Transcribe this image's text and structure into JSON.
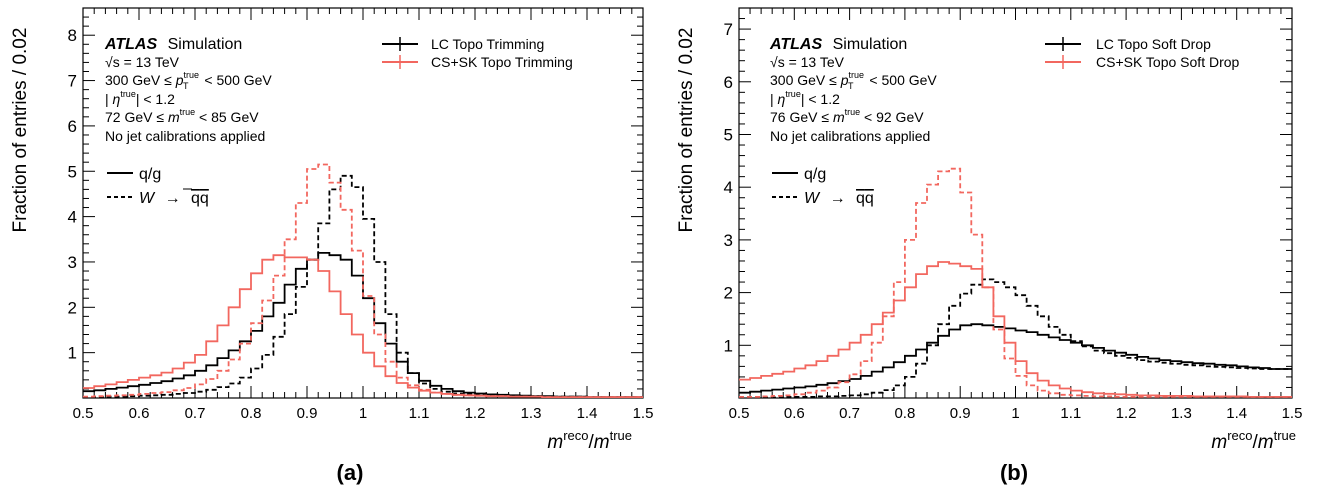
{
  "figure": {
    "ylabel": "Fraction of entries / 0.02",
    "xlabel_main": "m",
    "xlabel_sup1": "reco",
    "xlabel_slash": "/",
    "xlabel_main2": "m",
    "xlabel_sup2": "true"
  },
  "colors": {
    "lc": "#000000",
    "cssk": "#f2675f"
  },
  "panels": [
    {
      "letter": "(a)",
      "atlas": "ATLAS",
      "simulation": "Simulation",
      "info": {
        "l1_a": "√",
        "l1_b": "s = 13 TeV",
        "l2_a": "300 GeV ≤ ",
        "l2_b": "p",
        "l2_sup": "true",
        "l2_sub": "T",
        "l2_c": " < 500 GeV",
        "l3_a": "| ",
        "l3_b": "η",
        "l3_sup": "true",
        "l3_c": "| < 1.2",
        "l4_a": "72 GeV ≤ ",
        "l4_b": "m",
        "l4_sup": "true",
        "l4_c": " < 85 GeV",
        "l5": "No jet calibrations applied"
      },
      "legend": [
        "LC Topo Trimming",
        "CS+SK Topo Trimming"
      ],
      "style_legend": {
        "qg": "q/g",
        "w_a": "W",
        "w_arrow": "→",
        "w_b": "q",
        "w_c": "q"
      }
    },
    {
      "letter": "(b)",
      "atlas": "ATLAS",
      "simulation": "Simulation",
      "info": {
        "l1_a": "√",
        "l1_b": "s = 13 TeV",
        "l2_a": "300 GeV ≤ ",
        "l2_b": "p",
        "l2_sup": "true",
        "l2_sub": "T",
        "l2_c": " < 500 GeV",
        "l3_a": "| ",
        "l3_b": "η",
        "l3_sup": "true",
        "l3_c": "| < 1.2",
        "l4_a": "76 GeV ≤ ",
        "l4_b": "m",
        "l4_sup": "true",
        "l4_c": " < 92 GeV",
        "l5": "No jet calibrations applied"
      },
      "legend": [
        "LC Topo Soft Drop",
        "CS+SK Topo Soft Drop"
      ],
      "style_legend": {
        "qg": "q/g",
        "w_a": "W",
        "w_arrow": "→",
        "w_b": "q",
        "w_c": "q"
      }
    }
  ],
  "chart_data": [
    {
      "type": "line",
      "subtype": "step-histogram",
      "xlim": [
        0.5,
        1.5
      ],
      "ylim": [
        0,
        8.6
      ],
      "x_ticks": [
        "0.5",
        "0.6",
        "0.7",
        "0.8",
        "0.9",
        "1",
        "1.1",
        "1.2",
        "1.3",
        "1.4",
        "1.5"
      ],
      "y_ticks": [
        "1",
        "2",
        "3",
        "4",
        "5",
        "6",
        "7",
        "8"
      ],
      "bin_edges_start": 0.5,
      "bin_width": 0.02,
      "series": [
        {
          "name": "LC Topo Trimming",
          "style": "q/g",
          "color": "#000000",
          "dashed": false,
          "values": [
            0.15,
            0.17,
            0.2,
            0.23,
            0.26,
            0.29,
            0.33,
            0.37,
            0.43,
            0.5,
            0.6,
            0.72,
            0.88,
            1.05,
            1.25,
            1.48,
            1.8,
            2.1,
            2.5,
            2.85,
            3.05,
            3.2,
            3.15,
            3.05,
            2.7,
            2.2,
            1.65,
            1.2,
            0.8,
            0.55,
            0.38,
            0.27,
            0.2,
            0.15,
            0.12,
            0.1,
            0.08,
            0.07,
            0.06,
            0.05,
            0.04,
            0.04,
            0.03,
            0.03,
            0.03,
            0.02,
            0.02,
            0.02,
            0.02,
            0.02
          ]
        },
        {
          "name": "LC Topo Trimming",
          "style": "W→qq",
          "color": "#000000",
          "dashed": true,
          "values": [
            0.02,
            0.02,
            0.03,
            0.03,
            0.04,
            0.05,
            0.06,
            0.07,
            0.09,
            0.11,
            0.14,
            0.18,
            0.24,
            0.32,
            0.45,
            0.65,
            0.95,
            1.35,
            1.85,
            2.45,
            3.05,
            3.85,
            4.6,
            4.9,
            4.65,
            3.95,
            3.0,
            1.85,
            1.0,
            0.55,
            0.32,
            0.2,
            0.14,
            0.1,
            0.08,
            0.07,
            0.06,
            0.05,
            0.05,
            0.04,
            0.04,
            0.03,
            0.03,
            0.03,
            0.03,
            0.02,
            0.02,
            0.02,
            0.02,
            0.02
          ]
        },
        {
          "name": "CS+SK Topo Trimming",
          "style": "q/g",
          "color": "#f2675f",
          "dashed": false,
          "values": [
            0.22,
            0.26,
            0.3,
            0.35,
            0.4,
            0.45,
            0.5,
            0.56,
            0.65,
            0.78,
            0.95,
            1.25,
            1.6,
            2.0,
            2.4,
            2.75,
            3.05,
            3.15,
            3.1,
            3.1,
            3.05,
            2.8,
            2.35,
            1.85,
            1.4,
            1.0,
            0.7,
            0.48,
            0.33,
            0.23,
            0.16,
            0.12,
            0.09,
            0.07,
            0.06,
            0.05,
            0.04,
            0.04,
            0.03,
            0.03,
            0.03,
            0.02,
            0.02,
            0.02,
            0.02,
            0.02,
            0.02,
            0.02,
            0.02,
            0.02
          ]
        },
        {
          "name": "CS+SK Topo Trimming",
          "style": "W→qq",
          "color": "#f2675f",
          "dashed": true,
          "values": [
            0.03,
            0.04,
            0.05,
            0.06,
            0.07,
            0.09,
            0.11,
            0.13,
            0.17,
            0.22,
            0.3,
            0.42,
            0.6,
            0.85,
            1.2,
            1.65,
            2.15,
            2.7,
            3.5,
            4.3,
            5.05,
            5.15,
            4.75,
            4.15,
            3.25,
            2.25,
            1.4,
            0.8,
            0.45,
            0.28,
            0.18,
            0.12,
            0.09,
            0.07,
            0.06,
            0.05,
            0.04,
            0.04,
            0.03,
            0.03,
            0.03,
            0.02,
            0.02,
            0.02,
            0.02,
            0.02,
            0.02,
            0.02,
            0.02,
            0.02
          ]
        }
      ]
    },
    {
      "type": "line",
      "subtype": "step-histogram",
      "xlim": [
        0.5,
        1.5
      ],
      "ylim": [
        0,
        7.4
      ],
      "x_ticks": [
        "0.5",
        "0.6",
        "0.7",
        "0.8",
        "0.9",
        "1",
        "1.1",
        "1.2",
        "1.3",
        "1.4",
        "1.5"
      ],
      "y_ticks": [
        "1",
        "2",
        "3",
        "4",
        "5",
        "6",
        "7"
      ],
      "bin_edges_start": 0.5,
      "bin_width": 0.02,
      "series": [
        {
          "name": "LC Topo Soft Drop",
          "style": "q/g",
          "color": "#000000",
          "dashed": false,
          "values": [
            0.1,
            0.12,
            0.14,
            0.16,
            0.18,
            0.2,
            0.22,
            0.25,
            0.28,
            0.32,
            0.36,
            0.42,
            0.5,
            0.58,
            0.68,
            0.8,
            0.92,
            1.05,
            1.18,
            1.3,
            1.38,
            1.4,
            1.38,
            1.35,
            1.32,
            1.28,
            1.25,
            1.2,
            1.15,
            1.1,
            1.05,
            1.0,
            0.95,
            0.9,
            0.86,
            0.82,
            0.78,
            0.75,
            0.72,
            0.7,
            0.68,
            0.66,
            0.65,
            0.63,
            0.62,
            0.6,
            0.58,
            0.57,
            0.55,
            0.55
          ]
        },
        {
          "name": "LC Topo Soft Drop",
          "style": "W→qq",
          "color": "#000000",
          "dashed": true,
          "values": [
            0.01,
            0.01,
            0.01,
            0.01,
            0.02,
            0.02,
            0.02,
            0.03,
            0.03,
            0.04,
            0.05,
            0.07,
            0.1,
            0.15,
            0.24,
            0.4,
            0.65,
            1.0,
            1.4,
            1.75,
            1.98,
            2.15,
            2.25,
            2.2,
            2.1,
            1.95,
            1.75,
            1.55,
            1.35,
            1.2,
            1.08,
            0.98,
            0.9,
            0.85,
            0.8,
            0.76,
            0.72,
            0.69,
            0.67,
            0.65,
            0.63,
            0.62,
            0.6,
            0.59,
            0.58,
            0.57,
            0.56,
            0.55,
            0.55,
            0.55
          ]
        },
        {
          "name": "CS+SK Topo Soft Drop",
          "style": "q/g",
          "color": "#f2675f",
          "dashed": false,
          "values": [
            0.35,
            0.38,
            0.42,
            0.46,
            0.5,
            0.56,
            0.62,
            0.7,
            0.8,
            0.92,
            1.05,
            1.2,
            1.4,
            1.62,
            1.85,
            2.1,
            2.35,
            2.5,
            2.58,
            2.55,
            2.5,
            2.45,
            2.1,
            1.55,
            1.05,
            0.7,
            0.47,
            0.33,
            0.24,
            0.18,
            0.14,
            0.11,
            0.09,
            0.08,
            0.07,
            0.06,
            0.05,
            0.05,
            0.04,
            0.04,
            0.04,
            0.03,
            0.03,
            0.03,
            0.03,
            0.03,
            0.02,
            0.02,
            0.02,
            0.02
          ]
        },
        {
          "name": "CS+SK Topo Soft Drop",
          "style": "W→qq",
          "color": "#f2675f",
          "dashed": true,
          "values": [
            0.02,
            0.02,
            0.03,
            0.04,
            0.05,
            0.07,
            0.1,
            0.14,
            0.2,
            0.3,
            0.45,
            0.7,
            1.05,
            1.55,
            2.2,
            3.0,
            3.7,
            4.05,
            4.3,
            4.35,
            3.9,
            3.1,
            2.1,
            1.3,
            0.75,
            0.42,
            0.24,
            0.14,
            0.09,
            0.06,
            0.05,
            0.04,
            0.03,
            0.03,
            0.02,
            0.02,
            0.02,
            0.02,
            0.02,
            0.02,
            0.02,
            0.02,
            0.02,
            0.02,
            0.02,
            0.02,
            0.02,
            0.02,
            0.02,
            0.02
          ]
        }
      ]
    }
  ]
}
